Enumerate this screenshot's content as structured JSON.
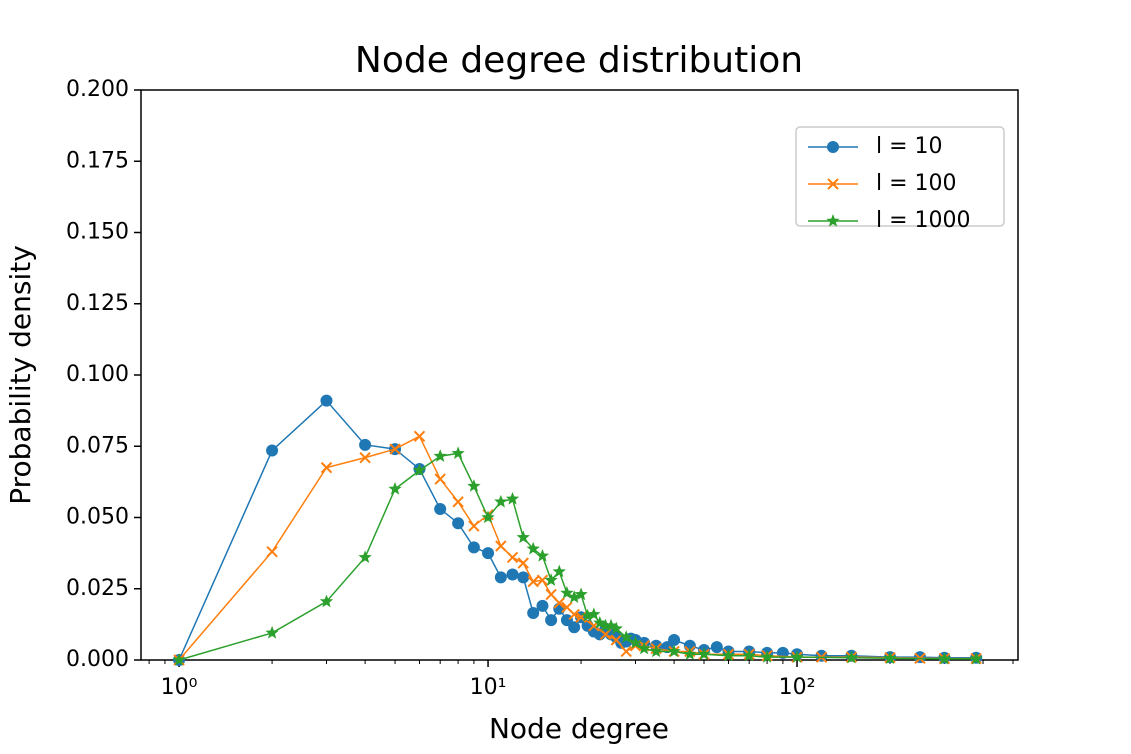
{
  "chart_data": {
    "type": "line",
    "title": "Node degree distribution",
    "x_label": "Node degree",
    "y_label": "Probability density",
    "xscale": "log",
    "xlim": [
      0.753,
      519
    ],
    "ylim": [
      0,
      0.2
    ],
    "xticks": [
      {
        "value": 1,
        "label": "10⁰"
      },
      {
        "value": 10,
        "label": "10¹"
      },
      {
        "value": 100,
        "label": "10²"
      }
    ],
    "xminorticks": [
      0.8,
      0.9,
      2,
      3,
      4,
      5,
      6,
      7,
      8,
      9,
      20,
      30,
      40,
      50,
      60,
      70,
      80,
      90,
      200,
      300,
      400,
      500
    ],
    "yticks": [
      {
        "value": 0,
        "label": "0.000"
      },
      {
        "value": 0.025,
        "label": "0.025"
      },
      {
        "value": 0.05,
        "label": "0.050"
      },
      {
        "value": 0.075,
        "label": "0.075"
      },
      {
        "value": 0.1,
        "label": "0.100"
      },
      {
        "value": 0.125,
        "label": "0.125"
      },
      {
        "value": 0.15,
        "label": "0.150"
      },
      {
        "value": 0.175,
        "label": "0.175"
      },
      {
        "value": 0.2,
        "label": "0.200"
      }
    ],
    "legend": "upper right",
    "series": [
      {
        "name": "l = 10",
        "color": "#1f77b4",
        "marker": "circle",
        "x": [
          1,
          2,
          3,
          4,
          5,
          6,
          7,
          8,
          9,
          10,
          11,
          12,
          13,
          14,
          15,
          16,
          17,
          18,
          19,
          20,
          21,
          22,
          23,
          24,
          25,
          26,
          27,
          28,
          29,
          30,
          32,
          35,
          38,
          40,
          45,
          50,
          55,
          60,
          70,
          80,
          90,
          100,
          120,
          150,
          200,
          250,
          300,
          380
        ],
        "values": [
          0,
          0.0735,
          0.091,
          0.0755,
          0.074,
          0.067,
          0.053,
          0.048,
          0.0395,
          0.0375,
          0.029,
          0.03,
          0.029,
          0.0165,
          0.019,
          0.014,
          0.018,
          0.014,
          0.0115,
          0.015,
          0.012,
          0.01,
          0.009,
          0.011,
          0.009,
          0.008,
          0.006,
          0.0065,
          0.0075,
          0.007,
          0.006,
          0.005,
          0.0045,
          0.007,
          0.005,
          0.0035,
          0.0045,
          0.003,
          0.003,
          0.0025,
          0.0025,
          0.002,
          0.0015,
          0.0015,
          0.001,
          0.001,
          0.0008,
          0.0008
        ]
      },
      {
        "name": "l = 100",
        "color": "#ff7f0e",
        "marker": "x",
        "x": [
          1,
          2,
          3,
          4,
          5,
          6,
          7,
          8,
          9,
          10,
          11,
          12,
          13,
          14,
          15,
          16,
          17,
          18,
          19,
          20,
          22,
          24,
          26,
          28,
          30,
          32,
          35,
          40,
          45,
          50,
          60,
          70,
          80,
          100,
          120,
          150,
          200,
          250,
          300,
          380
        ],
        "values": [
          0,
          0.038,
          0.0675,
          0.071,
          0.074,
          0.0785,
          0.0635,
          0.0555,
          0.047,
          0.051,
          0.04,
          0.036,
          0.034,
          0.0275,
          0.028,
          0.023,
          0.02,
          0.0185,
          0.016,
          0.015,
          0.012,
          0.009,
          0.007,
          0.003,
          0.005,
          0.005,
          0.004,
          0.003,
          0.003,
          0.002,
          0.002,
          0.002,
          0.0015,
          0.001,
          0.001,
          0.001,
          0.0008,
          0.0006,
          0.0005,
          0.0005
        ]
      },
      {
        "name": "l = 1000",
        "color": "#2ca02c",
        "marker": "star",
        "x": [
          1,
          2,
          3,
          4,
          5,
          6,
          7,
          8,
          9,
          10,
          11,
          12,
          13,
          14,
          15,
          16,
          17,
          18,
          19,
          20,
          21,
          22,
          23,
          24,
          25,
          26,
          28,
          30,
          32,
          35,
          40,
          45,
          50,
          60,
          70,
          80,
          100,
          150,
          200,
          300,
          380
        ],
        "values": [
          0,
          0.0095,
          0.0205,
          0.036,
          0.06,
          0.0665,
          0.0715,
          0.0725,
          0.061,
          0.05,
          0.0555,
          0.0565,
          0.043,
          0.039,
          0.0365,
          0.028,
          0.031,
          0.0235,
          0.022,
          0.023,
          0.0155,
          0.016,
          0.013,
          0.012,
          0.012,
          0.011,
          0.008,
          0.006,
          0.004,
          0.003,
          0.003,
          0.002,
          0.002,
          0.0015,
          0.0015,
          0.001,
          0.001,
          0.0008,
          0.0006,
          0.0004,
          0.0004
        ]
      }
    ]
  }
}
